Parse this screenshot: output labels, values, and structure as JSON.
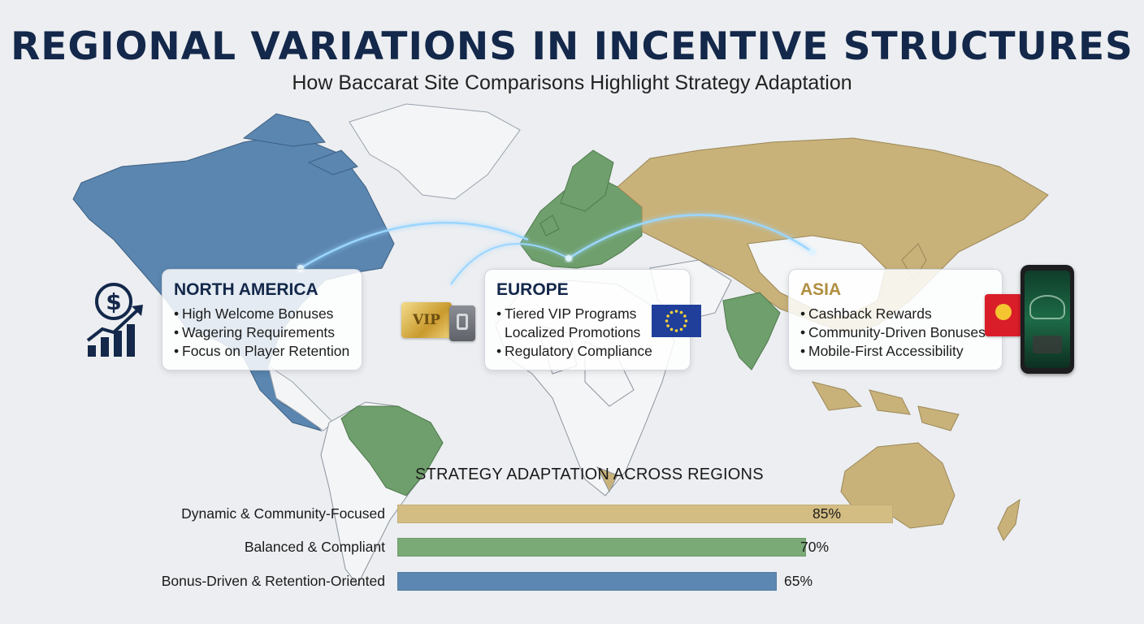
{
  "header": {
    "title": "REGIONAL VARIATIONS IN INCENTIVE STRUCTURES",
    "subtitle": "How Baccarat Site Comparisons Highlight Strategy Adaptation"
  },
  "regions": [
    {
      "name": "NORTH AMERICA",
      "color": "#5a86b0",
      "items": [
        "High Welcome Bonuses",
        "Wagering Requirements",
        "Focus on Player Retention"
      ]
    },
    {
      "name": "EUROPE",
      "color": "#6f9f6c",
      "items": [
        "Tiered VIP Programs",
        "Localized Promotions",
        "Regulatory Compliance"
      ]
    },
    {
      "name": "ASIA",
      "color": "#c9b27a",
      "items": [
        "Cashback Rewards",
        "Community-Driven Bonuses",
        "Mobile-First Accessibility"
      ]
    }
  ],
  "icons": {
    "vip_card_text": "VIP",
    "na_icon": "dollar-growth-chart-icon",
    "eu_icons": [
      "vip-card-icon",
      "eu-flag-icon"
    ],
    "asia_icons": [
      "red-envelope-icon",
      "mobile-baccarat-icon"
    ]
  },
  "chart_data": {
    "type": "bar",
    "orientation": "horizontal",
    "title": "STRATEGY ADAPTATION ACROSS REGIONS",
    "categories": [
      "Dynamic & Community-Focused",
      "Balanced & Compliant",
      "Bonus-Driven & Retention-Oriented"
    ],
    "values": [
      85,
      70,
      65
    ],
    "value_labels": [
      "85%",
      "70%",
      "65%"
    ],
    "colors": [
      "#d4bd83",
      "#7aaa76",
      "#5c87b2"
    ],
    "xlim": [
      0,
      100
    ],
    "grid": false
  }
}
